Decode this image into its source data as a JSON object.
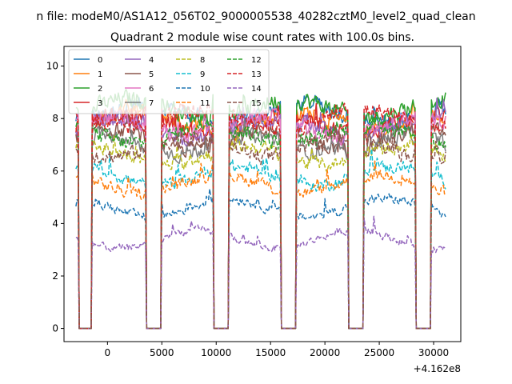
{
  "figure": {
    "suptitle": "n file: modeM0/AS1A12_056T02_9000005538_40282cztM0_level2_quad_clean"
  },
  "chart_data": {
    "type": "line",
    "title": "Quadrant 2 module wise count rates with 100.0s bins.",
    "xlabel": "",
    "ylabel": "",
    "x_offset_label": "+4.162e8",
    "xlim": [
      -4000,
      32500
    ],
    "ylim": [
      -0.5,
      10.75
    ],
    "xticks": [
      0,
      5000,
      10000,
      15000,
      20000,
      25000,
      30000
    ],
    "yticks": [
      0,
      2,
      4,
      6,
      8,
      10
    ],
    "x_tick_labels": [
      "0",
      "5000",
      "10000",
      "15000",
      "20000",
      "25000",
      "30000"
    ],
    "y_tick_labels": [
      "0",
      "2",
      "4",
      "6",
      "8",
      "10"
    ],
    "grid": false,
    "legend_position": "upper-left",
    "legend_columns": 4,
    "x_start": -2900,
    "x_end": 31100,
    "bin_width": 100,
    "gaps": [
      [
        -2600,
        -1450
      ],
      [
        3550,
        4950
      ],
      [
        9750,
        11150
      ],
      [
        15950,
        17350
      ],
      [
        22150,
        23550
      ],
      [
        28350,
        29750
      ]
    ],
    "series": [
      {
        "name": "0",
        "color": "#1f77b4",
        "dash": "solid",
        "level": 8.2
      },
      {
        "name": "1",
        "color": "#ff7f0e",
        "dash": "solid",
        "level": 7.9
      },
      {
        "name": "2",
        "color": "#2ca02c",
        "dash": "solid",
        "level": 8.4
      },
      {
        "name": "3",
        "color": "#d62728",
        "dash": "solid",
        "level": 7.8
      },
      {
        "name": "4",
        "color": "#9467bd",
        "dash": "solid",
        "level": 7.6
      },
      {
        "name": "5",
        "color": "#8c564b",
        "dash": "solid",
        "level": 7.2
      },
      {
        "name": "6",
        "color": "#e377c2",
        "dash": "solid",
        "level": 7.7
      },
      {
        "name": "7",
        "color": "#7f7f7f",
        "dash": "solid",
        "level": 7.0
      },
      {
        "name": "8",
        "color": "#bcbd22",
        "dash": "dashed",
        "level": 6.6
      },
      {
        "name": "9",
        "color": "#17becf",
        "dash": "dashed",
        "level": 5.8
      },
      {
        "name": "10",
        "color": "#1f77b4",
        "dash": "dashed",
        "level": 4.6
      },
      {
        "name": "11",
        "color": "#ff7f0e",
        "dash": "dashed",
        "level": 5.5
      },
      {
        "name": "12",
        "color": "#2ca02c",
        "dash": "dashed",
        "level": 7.4
      },
      {
        "name": "13",
        "color": "#d62728",
        "dash": "dashed",
        "level": 8.0
      },
      {
        "name": "14",
        "color": "#9467bd",
        "dash": "dashed",
        "level": 3.4
      },
      {
        "name": "15",
        "color": "#8c564b",
        "dash": "dashed",
        "level": 6.9
      }
    ]
  }
}
